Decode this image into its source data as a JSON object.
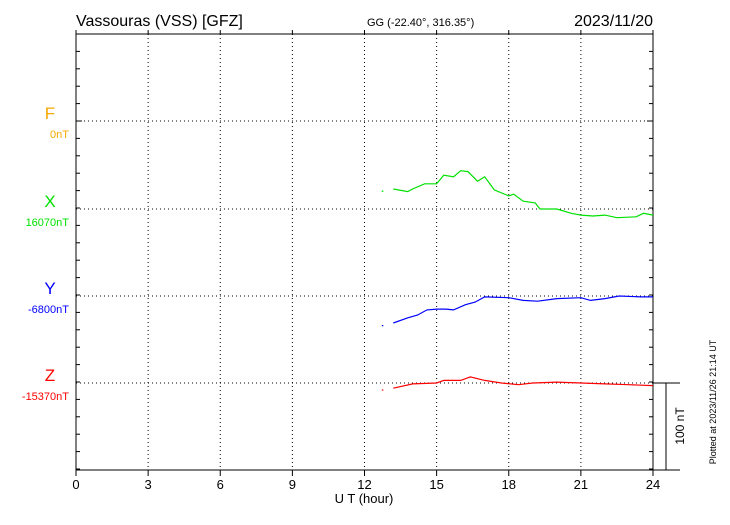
{
  "header": {
    "station": "Vassouras (VSS)  [GFZ]",
    "coords": "GG (-22.40°, 316.35°)",
    "date": "2023/11/20"
  },
  "footer_note": "Plotted at 2023/11/26 21:14 UT",
  "scale_label": "100 nT",
  "chart_data": {
    "type": "line",
    "title": "Vassouras (VSS)  [GFZ]",
    "xlabel": "U T (hour)",
    "xlim": [
      0,
      24
    ],
    "xticks": [
      "0",
      "3",
      "6",
      "9",
      "12",
      "15",
      "18",
      "21",
      "24"
    ],
    "grid": true,
    "scale_bar_nT": 100,
    "series": [
      {
        "name": "F",
        "baseline_label": "0nT",
        "color": "#f5a800",
        "x": [],
        "y": []
      },
      {
        "name": "X",
        "baseline_label": "16070nT",
        "color": "#00e000",
        "x": [
          12.72,
          12.78,
          null,
          13.2,
          13.8,
          14.0,
          14.5,
          15.0,
          15.3,
          15.7,
          16.0,
          16.3,
          16.7,
          17.0,
          17.4,
          18.0,
          18.2,
          18.6,
          19.1,
          19.3,
          20.0,
          20.6,
          21.0,
          21.5,
          22.0,
          22.5,
          23.3,
          23.6,
          24.0
        ],
        "y": [
          20,
          21,
          null,
          23,
          20,
          23,
          29,
          29,
          39,
          37,
          44,
          43,
          32,
          37,
          22,
          15,
          17,
          9,
          7,
          0,
          0,
          -5,
          -7,
          -8,
          -7,
          -10,
          -9,
          -5,
          -7
        ]
      },
      {
        "name": "Y",
        "baseline_label": "-6800nT",
        "color": "#0000ff",
        "x": [
          12.72,
          12.78,
          null,
          13.2,
          13.8,
          14.2,
          14.6,
          15.0,
          15.4,
          15.7,
          16.2,
          16.6,
          17.0,
          18.0,
          18.6,
          19.2,
          20.0,
          21.0,
          21.4,
          22.0,
          22.6,
          23.5,
          24.0
        ],
        "y": [
          -34,
          -34,
          null,
          -31,
          -25,
          -22,
          -16,
          -15,
          -15,
          -16,
          -10,
          -7,
          -1,
          -2,
          -5,
          -6,
          -3,
          -2,
          -5,
          -3,
          0,
          -1,
          -1
        ]
      },
      {
        "name": "Z",
        "baseline_label": "-15370nT",
        "color": "#ff0000",
        "x": [
          12.72,
          12.78,
          null,
          13.2,
          14.0,
          15.0,
          15.3,
          16.0,
          16.4,
          17.0,
          17.7,
          18.4,
          19.0,
          20.0,
          21.0,
          22.0,
          23.0,
          24.0
        ],
        "y": [
          -8,
          -8,
          null,
          -6,
          -1,
          0,
          3,
          3,
          7,
          3,
          0,
          -2,
          0,
          1,
          0,
          -1,
          -2,
          -3
        ]
      }
    ]
  }
}
